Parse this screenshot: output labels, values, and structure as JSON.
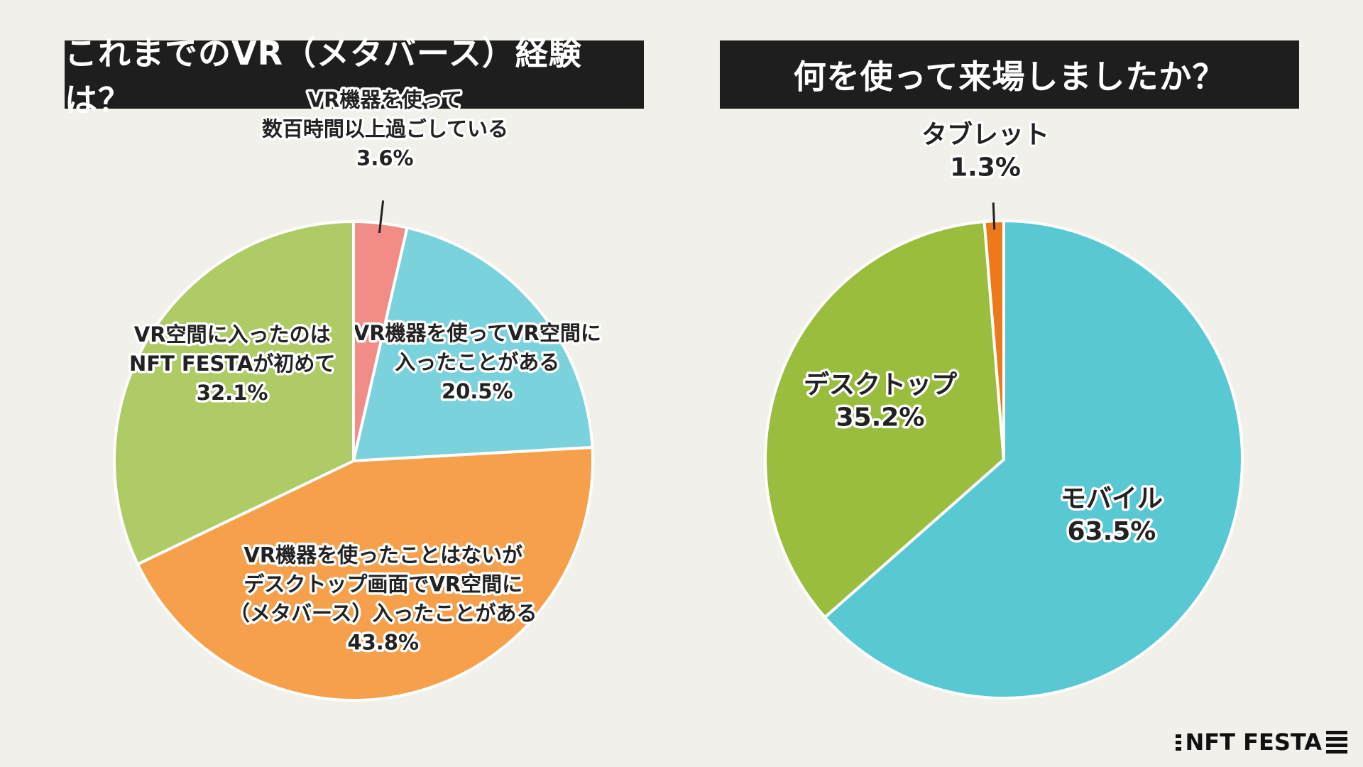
{
  "colors": {
    "background": "#f1f0eb",
    "title_bar": "#1e1e1e",
    "pink": "#f28c87",
    "light_blue": "#7ad3dc",
    "orange": "#f6a04b",
    "light_green": "#aecb66",
    "cyan": "#58c8d3",
    "green": "#9bbd3e",
    "dark_orange": "#ed7a1a"
  },
  "logo": {
    "text": "NFT FESTA"
  },
  "chart_data": [
    {
      "type": "pie",
      "title": "これまでのVR（メタバース）経験は？",
      "slices": [
        {
          "label_lines": [
            "VR機器を使って",
            "数百時間以上過ごしている"
          ],
          "value": 3.6,
          "value_label": "3.6%",
          "color": "#f28c87"
        },
        {
          "label_lines": [
            "VR機器を使ってVR空間に",
            "入ったことがある"
          ],
          "value": 20.5,
          "value_label": "20.5%",
          "color": "#7ad3dc"
        },
        {
          "label_lines": [
            "VR機器を使ったことはないが",
            "デスクトップ画面でVR空間に",
            "（メタバース）入ったことがある"
          ],
          "value": 43.8,
          "value_label": "43.8%",
          "color": "#f6a04b"
        },
        {
          "label_lines": [
            "VR空間に入ったのは",
            "NFT FESTAが初めて"
          ],
          "value": 32.1,
          "value_label": "32.1%",
          "color": "#aecb66"
        }
      ]
    },
    {
      "type": "pie",
      "title": "何を使って来場しましたか？",
      "slices": [
        {
          "label_lines": [
            "モバイル"
          ],
          "value": 63.5,
          "value_label": "63.5%",
          "color": "#58c8d3"
        },
        {
          "label_lines": [
            "デスクトップ"
          ],
          "value": 35.2,
          "value_label": "35.2%",
          "color": "#9bbd3e"
        },
        {
          "label_lines": [
            "タブレット"
          ],
          "value": 1.3,
          "value_label": "1.3%",
          "color": "#ed7a1a"
        }
      ]
    }
  ]
}
